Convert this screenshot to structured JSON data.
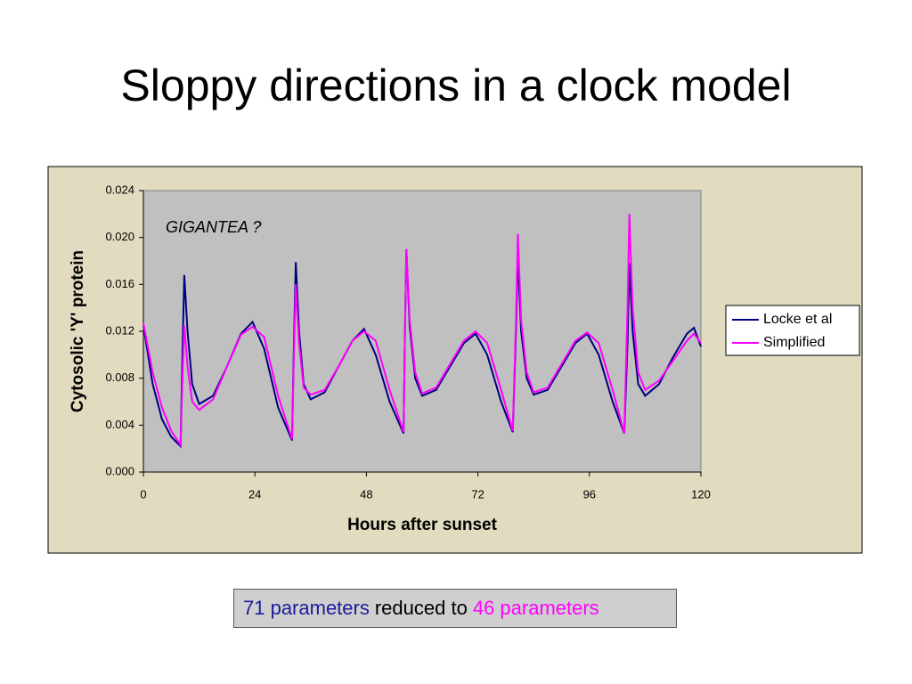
{
  "slide": {
    "title": "Sloppy directions in a clock model",
    "caption": [
      {
        "text": "71 parameters",
        "color": "#1c1c9c"
      },
      {
        "text": "reduced to",
        "color": "#000000"
      },
      {
        "text": "46 parameters",
        "color": "#ff00ff"
      }
    ]
  },
  "chart_data": {
    "type": "line",
    "xlabel": "Hours after sunset",
    "ylabel": "Cytosolic 'Y' protein",
    "annotation": "GIGANTEA ?",
    "x": [
      0,
      2,
      4,
      6,
      8,
      8.4,
      8.8,
      9.5,
      10.5,
      12,
      15,
      18,
      21,
      23.5,
      26,
      29,
      32,
      32.4,
      32.8,
      33.5,
      34.5,
      36,
      39,
      42,
      45,
      47.5,
      50,
      53,
      56,
      56.3,
      56.6,
      57.3,
      58.5,
      60,
      63,
      66,
      69,
      71.5,
      74,
      77,
      79.5,
      80.2,
      80.6,
      81.3,
      82.5,
      84,
      87,
      90,
      93,
      95.5,
      98,
      101,
      103.5,
      104.2,
      104.6,
      105.3,
      106.5,
      108,
      111,
      114,
      117,
      118.5,
      120
    ],
    "series": [
      {
        "name": "Locke  et al",
        "color": "#000080",
        "values": [
          0.0125,
          0.0075,
          0.0045,
          0.003,
          0.0022,
          0.01,
          0.0168,
          0.012,
          0.0075,
          0.0058,
          0.0065,
          0.009,
          0.0118,
          0.0128,
          0.0105,
          0.0055,
          0.0027,
          0.011,
          0.0179,
          0.012,
          0.0075,
          0.0062,
          0.0068,
          0.009,
          0.0112,
          0.0122,
          0.01,
          0.006,
          0.0033,
          0.012,
          0.019,
          0.0125,
          0.008,
          0.0065,
          0.007,
          0.009,
          0.011,
          0.0118,
          0.01,
          0.006,
          0.0034,
          0.012,
          0.0185,
          0.012,
          0.008,
          0.0066,
          0.007,
          0.009,
          0.011,
          0.0118,
          0.01,
          0.006,
          0.0033,
          0.011,
          0.0178,
          0.012,
          0.0075,
          0.0065,
          0.0075,
          0.0098,
          0.0118,
          0.0123,
          0.0107
        ]
      },
      {
        "name": "Simplified",
        "color": "#ff00ff",
        "values": [
          0.0127,
          0.0085,
          0.0055,
          0.0035,
          0.0023,
          0.008,
          0.0125,
          0.009,
          0.006,
          0.0053,
          0.0062,
          0.009,
          0.0117,
          0.0124,
          0.0115,
          0.0065,
          0.0028,
          0.01,
          0.016,
          0.011,
          0.0072,
          0.0066,
          0.007,
          0.009,
          0.0112,
          0.012,
          0.0112,
          0.007,
          0.0034,
          0.012,
          0.019,
          0.013,
          0.0085,
          0.0067,
          0.0072,
          0.0092,
          0.0112,
          0.012,
          0.011,
          0.007,
          0.0035,
          0.013,
          0.0203,
          0.013,
          0.0085,
          0.0068,
          0.0072,
          0.0092,
          0.0112,
          0.0119,
          0.011,
          0.007,
          0.0033,
          0.014,
          0.022,
          0.014,
          0.0085,
          0.007,
          0.0078,
          0.0095,
          0.0112,
          0.0118,
          0.011
        ]
      }
    ],
    "xlim": [
      0,
      120
    ],
    "xticks": [
      0,
      24,
      48,
      72,
      96,
      120
    ],
    "ylim": [
      0,
      0.024
    ],
    "yticks": [
      {
        "value": 0,
        "label": "0.000"
      },
      0.004,
      0.008,
      0.012,
      0.016,
      {
        "value": 0.02,
        "label": "0.020"
      },
      0.024
    ],
    "grid": false,
    "legend": "right"
  }
}
